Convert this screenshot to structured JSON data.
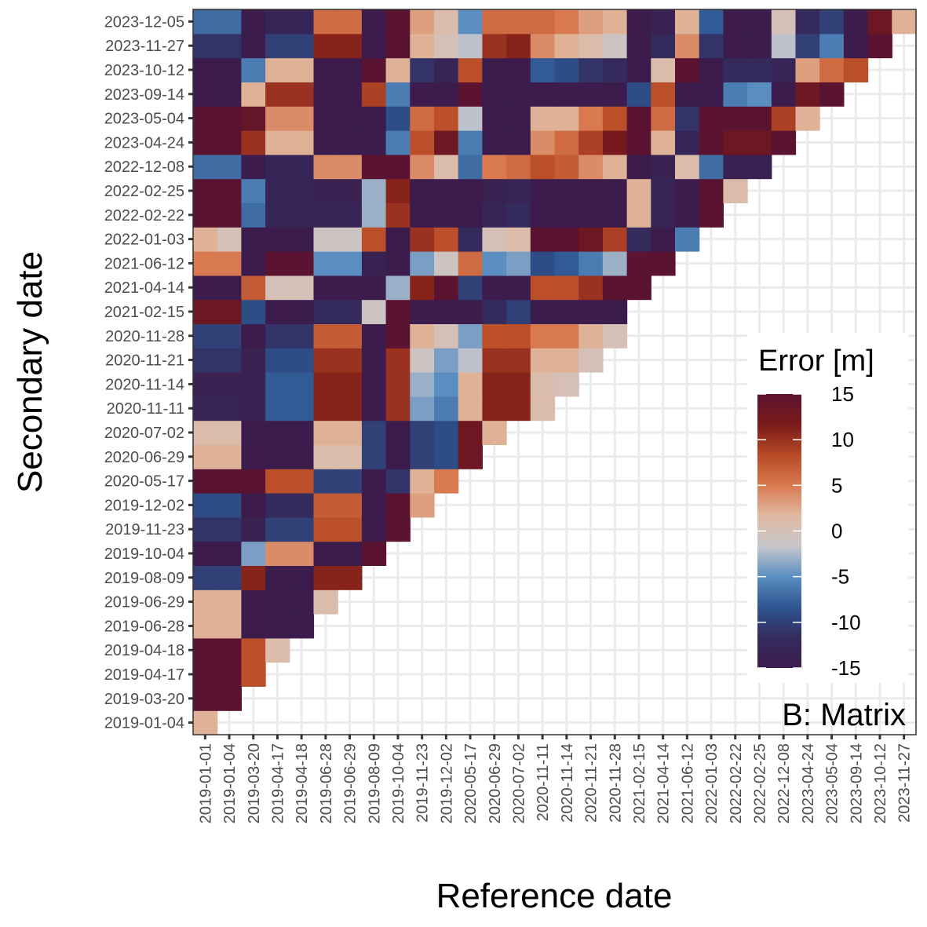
{
  "chart_data": {
    "type": "heatmap",
    "xlabel": "Reference date",
    "ylabel": "Secondary date",
    "tag": "B: Matrix",
    "legend": {
      "title": "Error [m]",
      "min": -15,
      "max": 15,
      "ticks": [
        "15",
        "10",
        "5",
        "0",
        "-5",
        "-10",
        "-15"
      ],
      "tick_values": [
        15,
        10,
        5,
        0,
        -5,
        -10,
        -15
      ],
      "position": "right-inside",
      "colors": [
        "#3b1c4c",
        "#342b5e",
        "#2d5590",
        "#5a8ec0",
        "#c7c7cc",
        "#e0b8a0",
        "#d87950",
        "#b74a26",
        "#7a1a1a",
        "#5a1330"
      ]
    },
    "reference_dates": [
      "2019-01-01",
      "2019-01-04",
      "2019-03-20",
      "2019-04-17",
      "2019-04-18",
      "2019-06-28",
      "2019-06-29",
      "2019-08-09",
      "2019-10-04",
      "2019-11-23",
      "2019-12-02",
      "2020-05-17",
      "2020-06-29",
      "2020-07-02",
      "2020-11-11",
      "2020-11-14",
      "2020-11-21",
      "2020-11-28",
      "2021-02-15",
      "2021-04-14",
      "2021-06-12",
      "2022-01-03",
      "2022-02-22",
      "2022-02-25",
      "2022-12-08",
      "2023-04-24",
      "2023-05-04",
      "2023-09-14",
      "2023-10-12",
      "2023-11-27"
    ],
    "secondary_dates": [
      "2019-01-04",
      "2019-03-20",
      "2019-04-17",
      "2019-04-18",
      "2019-06-28",
      "2019-06-29",
      "2019-08-09",
      "2019-10-04",
      "2019-11-23",
      "2019-12-02",
      "2020-05-17",
      "2020-06-29",
      "2020-07-02",
      "2020-11-11",
      "2020-11-14",
      "2020-11-21",
      "2020-11-28",
      "2021-02-15",
      "2021-04-14",
      "2021-06-12",
      "2022-01-03",
      "2022-02-22",
      "2022-02-25",
      "2022-12-08",
      "2023-04-24",
      "2023-05-04",
      "2023-09-14",
      "2023-10-12",
      "2023-11-27",
      "2023-12-05"
    ],
    "values": [
      [
        2
      ],
      [
        16,
        16
      ],
      [
        15,
        15,
        8
      ],
      [
        15,
        15,
        8,
        1
      ],
      [
        2,
        2,
        -15,
        -15,
        -15
      ],
      [
        2,
        2,
        -15,
        -15,
        -15,
        1
      ],
      [
        -10,
        -10,
        11,
        -15,
        -15,
        11,
        11
      ],
      [
        -15,
        -15,
        -4,
        4,
        4,
        -15,
        -15,
        15
      ],
      [
        -11,
        -11,
        -14,
        -10,
        -10,
        8,
        8,
        -15,
        15
      ],
      [
        -9,
        -9,
        -15,
        -12,
        -12,
        7,
        7,
        -15,
        15,
        3
      ],
      [
        15,
        15,
        15,
        8,
        8,
        -10,
        -10,
        -15,
        -11,
        2,
        5
      ],
      [
        2,
        2,
        -15,
        -15,
        -15,
        1,
        1,
        -10,
        -15,
        -10,
        -9,
        13
      ],
      [
        1,
        1,
        -15,
        -15,
        -15,
        2,
        2,
        -10,
        -15,
        -10,
        -9,
        13,
        2
      ],
      [
        -13,
        -13,
        -14,
        -8,
        -8,
        11,
        11,
        -15,
        10,
        -4,
        -6,
        2,
        11,
        11,
        1
      ],
      [
        -14,
        -14,
        -14,
        -8,
        -8,
        11,
        11,
        -15,
        10,
        -3,
        -5,
        2,
        11,
        11,
        1,
        0
      ],
      [
        -11,
        -11,
        -14,
        -9,
        -9,
        10,
        10,
        -15,
        10,
        -1,
        -4,
        -2,
        10,
        10,
        2,
        2,
        0
      ],
      [
        -10,
        -10,
        -15,
        -11,
        -11,
        7,
        7,
        -15,
        15,
        2,
        0,
        -4,
        8,
        8,
        5,
        5,
        2,
        0
      ],
      [
        13,
        13,
        -9,
        -15,
        -15,
        -12,
        -12,
        -1,
        15,
        -15,
        -15,
        -15,
        -12,
        -10,
        -15,
        -15,
        -15,
        -15
      ],
      [
        -15,
        -15,
        7,
        0,
        0,
        -15,
        -15,
        -15,
        -3,
        11,
        15,
        -10,
        -15,
        -15,
        8,
        8,
        10,
        15,
        15
      ],
      [
        5,
        5,
        -15,
        15,
        15,
        -5,
        -5,
        -14,
        -15,
        -4,
        -1,
        6,
        -5,
        -4,
        -9,
        -8,
        -6,
        -3,
        16,
        15
      ],
      [
        2,
        0,
        -15,
        -15,
        -15,
        -1,
        -1,
        8,
        -15,
        10,
        8,
        -12,
        0,
        1,
        15,
        15,
        13,
        9,
        -12,
        -15,
        -6
      ],
      [
        15,
        15,
        -7,
        -13,
        -13,
        -13,
        -13,
        -3,
        10,
        -15,
        -15,
        -15,
        -13,
        -12,
        -15,
        -15,
        -15,
        -15,
        2,
        -13,
        -15,
        15
      ],
      [
        15,
        15,
        -6,
        -13,
        -13,
        -14,
        -14,
        -3,
        11,
        -15,
        -15,
        -15,
        -14,
        -13,
        -15,
        -15,
        -15,
        -15,
        2,
        -13,
        -15,
        15,
        1
      ],
      [
        -7,
        -7,
        -15,
        -13,
        -13,
        4,
        4,
        15,
        15,
        4,
        1,
        -7,
        5,
        6,
        8,
        7,
        4,
        2,
        -15,
        -14,
        1,
        -7,
        -14,
        -14
      ],
      [
        15,
        15,
        10,
        2,
        2,
        -15,
        -15,
        -15,
        -6,
        8,
        13,
        -6,
        -15,
        -15,
        4,
        6,
        9,
        12,
        15,
        2,
        -13,
        15,
        13,
        13,
        15
      ],
      [
        15,
        15,
        14,
        4,
        4,
        -15,
        -15,
        -15,
        -9,
        6,
        8,
        -2,
        -15,
        -15,
        2,
        2,
        5,
        8,
        15,
        6,
        -11,
        15,
        15,
        15,
        9,
        2
      ],
      [
        -15,
        -15,
        2,
        10,
        10,
        -15,
        -15,
        9,
        -6,
        -15,
        -15,
        15,
        -15,
        -15,
        -15,
        -15,
        -15,
        -15,
        -9,
        8,
        -15,
        -15,
        -6,
        -5,
        -15,
        13,
        15
      ],
      [
        -15,
        -15,
        -6,
        2,
        2,
        -15,
        -15,
        15,
        2,
        -11,
        -13,
        8,
        -15,
        -15,
        -8,
        -9,
        -11,
        -12,
        -15,
        1,
        15,
        -15,
        -12,
        -12,
        -13,
        3,
        6,
        8
      ],
      [
        -11,
        -11,
        -15,
        -10,
        -10,
        11,
        11,
        -15,
        15,
        2,
        0,
        -2,
        10,
        11,
        4,
        2,
        1,
        -1,
        -15,
        -12,
        4,
        -11,
        -15,
        -15,
        -2,
        -10,
        -6,
        -15,
        15
      ],
      [
        -7,
        -7,
        -15,
        -13,
        -13,
        6,
        6,
        -15,
        15,
        3,
        1,
        -5,
        6,
        6,
        6,
        5,
        3,
        2,
        -15,
        -14,
        2,
        -8,
        -15,
        -15,
        0,
        -12,
        -10,
        -15,
        13,
        2
      ]
    ]
  }
}
